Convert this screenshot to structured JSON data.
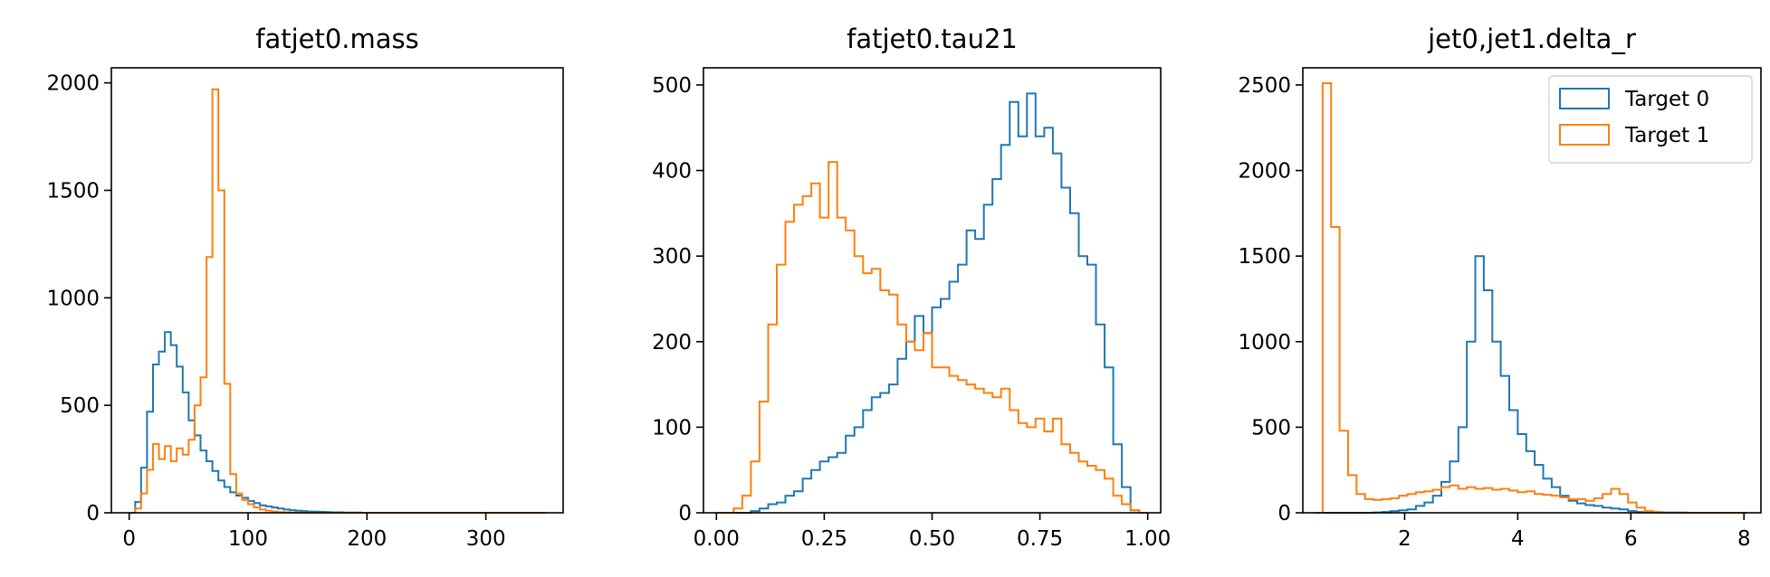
{
  "chart_data": [
    {
      "type": "histogram",
      "title": "fatjet0.mass",
      "xlim": [
        -15,
        365
      ],
      "ylim": [
        0,
        2070
      ],
      "xticks": [
        0,
        100,
        200,
        300
      ],
      "xtick_labels": [
        "0",
        "100",
        "200",
        "300"
      ],
      "yticks": [
        0,
        500,
        1000,
        1500,
        2000
      ],
      "ytick_labels": [
        "0",
        "500",
        "1000",
        "1500",
        "2000"
      ],
      "grid": false,
      "legend": null,
      "series": [
        {
          "color": "#1f77b4",
          "bin_edges": [
            0,
            5,
            10,
            15,
            20,
            25,
            30,
            35,
            40,
            45,
            50,
            55,
            60,
            65,
            70,
            75,
            80,
            85,
            90,
            95,
            100,
            105,
            110,
            115,
            120,
            125,
            130,
            135,
            140,
            145,
            150,
            155,
            160,
            165,
            170,
            175,
            180,
            185,
            190,
            195,
            200,
            250,
            300,
            350
          ],
          "counts": [
            0,
            50,
            210,
            470,
            690,
            750,
            840,
            780,
            680,
            560,
            430,
            360,
            290,
            240,
            195,
            150,
            120,
            95,
            80,
            70,
            55,
            45,
            35,
            30,
            25,
            20,
            15,
            12,
            10,
            8,
            6,
            5,
            4,
            3,
            2,
            2,
            1,
            1,
            1,
            0,
            0,
            0,
            0
          ]
        },
        {
          "color": "#ff7f0e",
          "bin_edges": [
            0,
            5,
            10,
            15,
            20,
            25,
            30,
            35,
            40,
            45,
            50,
            55,
            60,
            65,
            70,
            75,
            80,
            85,
            90,
            95,
            100,
            105,
            110,
            115,
            120,
            125,
            130,
            135,
            140,
            145,
            150,
            155,
            160,
            165,
            170,
            175,
            180,
            185,
            190,
            195,
            200,
            250,
            300,
            350
          ],
          "counts": [
            0,
            20,
            90,
            200,
            320,
            250,
            310,
            240,
            300,
            270,
            340,
            500,
            630,
            1190,
            1970,
            1500,
            600,
            180,
            90,
            60,
            40,
            25,
            15,
            10,
            5,
            3,
            2,
            1,
            1,
            0,
            0,
            0,
            0,
            0,
            0,
            0,
            0,
            0,
            0,
            0,
            0,
            0,
            0
          ]
        }
      ]
    },
    {
      "type": "histogram",
      "title": "fatjet0.tau21",
      "xlim": [
        -0.03,
        1.03
      ],
      "ylim": [
        0,
        520
      ],
      "xticks": [
        0.0,
        0.25,
        0.5,
        0.75,
        1.0
      ],
      "xtick_labels": [
        "0.00",
        "0.25",
        "0.50",
        "0.75",
        "1.00"
      ],
      "yticks": [
        0,
        100,
        200,
        300,
        400,
        500
      ],
      "ytick_labels": [
        "0",
        "100",
        "200",
        "300",
        "400",
        "500"
      ],
      "grid": false,
      "legend": null,
      "series": [
        {
          "color": "#1f77b4",
          "bin_edges": [
            0.0,
            0.02,
            0.04,
            0.06,
            0.08,
            0.1,
            0.12,
            0.14,
            0.16,
            0.18,
            0.2,
            0.22,
            0.24,
            0.26,
            0.28,
            0.3,
            0.32,
            0.34,
            0.36,
            0.38,
            0.4,
            0.42,
            0.44,
            0.46,
            0.48,
            0.5,
            0.52,
            0.54,
            0.56,
            0.58,
            0.6,
            0.62,
            0.64,
            0.66,
            0.68,
            0.7,
            0.72,
            0.74,
            0.76,
            0.78,
            0.8,
            0.82,
            0.84,
            0.86,
            0.88,
            0.9,
            0.92,
            0.94,
            0.96,
            0.98,
            1.0
          ],
          "counts": [
            0,
            0,
            0,
            0,
            2,
            5,
            10,
            12,
            20,
            25,
            40,
            50,
            60,
            65,
            70,
            90,
            100,
            120,
            135,
            140,
            150,
            180,
            200,
            230,
            210,
            240,
            250,
            270,
            290,
            330,
            320,
            360,
            390,
            430,
            480,
            440,
            490,
            440,
            450,
            420,
            380,
            350,
            300,
            290,
            220,
            170,
            80,
            30,
            3,
            0
          ]
        },
        {
          "color": "#ff7f0e",
          "bin_edges": [
            0.0,
            0.02,
            0.04,
            0.06,
            0.08,
            0.1,
            0.12,
            0.14,
            0.16,
            0.18,
            0.2,
            0.22,
            0.24,
            0.26,
            0.28,
            0.3,
            0.32,
            0.34,
            0.36,
            0.38,
            0.4,
            0.42,
            0.44,
            0.46,
            0.48,
            0.5,
            0.52,
            0.54,
            0.56,
            0.58,
            0.6,
            0.62,
            0.64,
            0.66,
            0.68,
            0.7,
            0.72,
            0.74,
            0.76,
            0.78,
            0.8,
            0.82,
            0.84,
            0.86,
            0.88,
            0.9,
            0.92,
            0.94,
            0.96,
            0.98,
            1.0
          ],
          "counts": [
            0,
            0,
            5,
            20,
            60,
            130,
            220,
            290,
            340,
            360,
            370,
            385,
            345,
            410,
            345,
            330,
            300,
            280,
            285,
            260,
            255,
            220,
            200,
            190,
            210,
            170,
            170,
            160,
            155,
            150,
            145,
            140,
            135,
            145,
            120,
            105,
            100,
            110,
            95,
            110,
            80,
            70,
            60,
            55,
            50,
            40,
            20,
            10,
            3,
            0
          ]
        }
      ]
    },
    {
      "type": "histogram",
      "title": "jet0,jet1.delta_r",
      "xlim": [
        0.2,
        8.3
      ],
      "ylim": [
        0,
        2600
      ],
      "xticks": [
        2,
        4,
        6,
        8
      ],
      "xtick_labels": [
        "2",
        "4",
        "6",
        "8"
      ],
      "yticks": [
        0,
        500,
        1000,
        1500,
        2000,
        2500
      ],
      "ytick_labels": [
        "0",
        "500",
        "1000",
        "1500",
        "2000",
        "2500"
      ],
      "grid": false,
      "legend": {
        "position": "upper right",
        "entries": [
          "Target 0",
          "Target 1"
        ]
      },
      "series": [
        {
          "name": "Target 0",
          "color": "#1f77b4",
          "bin_edges": [
            0.4,
            0.55,
            0.7,
            0.85,
            1.0,
            1.15,
            1.3,
            1.45,
            1.6,
            1.75,
            1.9,
            2.05,
            2.2,
            2.35,
            2.5,
            2.65,
            2.8,
            2.95,
            3.1,
            3.25,
            3.4,
            3.55,
            3.7,
            3.85,
            4.0,
            4.15,
            4.3,
            4.45,
            4.6,
            4.75,
            4.9,
            5.05,
            5.2,
            5.35,
            5.5,
            5.65,
            5.8,
            5.95,
            6.1,
            6.25,
            6.4,
            6.55,
            6.7,
            6.85,
            7.0,
            7.15,
            7.3,
            7.45,
            7.6,
            7.75,
            7.9,
            8.05
          ],
          "counts": [
            0,
            0,
            0,
            0,
            0,
            0,
            0,
            2,
            5,
            10,
            15,
            20,
            40,
            60,
            100,
            180,
            300,
            500,
            1000,
            1500,
            1300,
            1000,
            800,
            600,
            460,
            360,
            280,
            200,
            150,
            100,
            70,
            55,
            45,
            40,
            30,
            25,
            20,
            10,
            5,
            3,
            2,
            1,
            1,
            1,
            0,
            0,
            0,
            0,
            0,
            0,
            0
          ]
        },
        {
          "name": "Target 1",
          "color": "#ff7f0e",
          "bin_edges": [
            0.4,
            0.55,
            0.7,
            0.85,
            1.0,
            1.15,
            1.3,
            1.45,
            1.6,
            1.75,
            1.9,
            2.05,
            2.2,
            2.35,
            2.5,
            2.65,
            2.8,
            2.95,
            3.1,
            3.25,
            3.4,
            3.55,
            3.7,
            3.85,
            4.0,
            4.15,
            4.3,
            4.45,
            4.6,
            4.75,
            4.9,
            5.05,
            5.2,
            5.35,
            5.5,
            5.65,
            5.8,
            5.95,
            6.1,
            6.25,
            6.4,
            6.55,
            6.7,
            6.85,
            7.0,
            7.15,
            7.3,
            7.45,
            7.6,
            7.75,
            7.9,
            8.05
          ],
          "counts": [
            0,
            2510,
            1670,
            480,
            220,
            110,
            80,
            75,
            80,
            85,
            100,
            110,
            120,
            125,
            135,
            150,
            160,
            140,
            150,
            140,
            145,
            135,
            140,
            130,
            120,
            125,
            110,
            105,
            100,
            90,
            80,
            80,
            70,
            85,
            110,
            140,
            110,
            60,
            30,
            10,
            5,
            2,
            1,
            0,
            0,
            0,
            0,
            0,
            0,
            0,
            0
          ]
        }
      ]
    }
  ]
}
